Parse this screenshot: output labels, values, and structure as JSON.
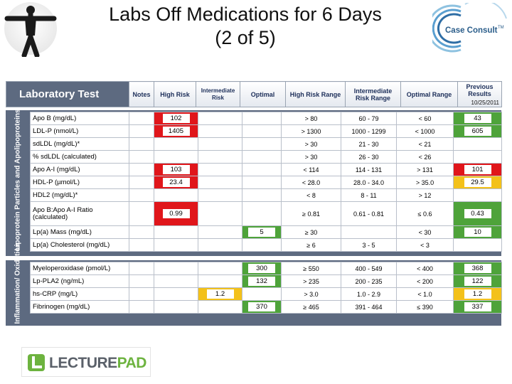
{
  "slide": {
    "title_line1": "Labs Off Medications for 6 Days",
    "title_line2": "(2 of 5)"
  },
  "logos": {
    "case_consult": "Case Consult",
    "case_consult_tm": "TM",
    "lecturepad_part1": "LECTURE",
    "lecturepad_part2": "PAD",
    "human_figure": "vitruvian-figure-icon"
  },
  "header": {
    "laboratory_test": "Laboratory Test",
    "notes": "Notes",
    "high_risk": "High Risk",
    "intermediate_risk": "Intermediate Risk",
    "optimal": "Optimal",
    "high_risk_range": "High Risk Range",
    "intermediate_risk_range": "Intermediate Risk Range",
    "optimal_range": "Optimal Range",
    "previous_results": "Previous Results",
    "previous_date": "10/25/2011"
  },
  "colors": {
    "high": "#e0161b",
    "intermediate": "#f3c11a",
    "optimal": "#4ea33a",
    "band": "#5d6a80"
  },
  "sections": [
    {
      "label": "Lipoprotein Particles and Apolipoproteins",
      "rows": [
        {
          "name": "Apo B (mg/dL)",
          "result": "102",
          "risk": "high",
          "high_range": "> 80",
          "int_range": "60 - 79",
          "opt_range": "< 60",
          "previous": "43",
          "prev_risk": "optimal"
        },
        {
          "name": "LDL-P (nmol/L)",
          "result": "1405",
          "risk": "high",
          "high_range": "> 1300",
          "int_range": "1000 - 1299",
          "opt_range": "< 1000",
          "previous": "605",
          "prev_risk": "optimal"
        },
        {
          "name": "sdLDL (mg/dL)*",
          "result": "",
          "risk": "",
          "high_range": "> 30",
          "int_range": "21 - 30",
          "opt_range": "< 21",
          "previous": "",
          "prev_risk": ""
        },
        {
          "name": "% sdLDL (calculated)",
          "result": "",
          "risk": "",
          "high_range": "> 30",
          "int_range": "26 - 30",
          "opt_range": "< 26",
          "previous": "",
          "prev_risk": ""
        },
        {
          "name": "Apo A-I (mg/dL)",
          "result": "103",
          "risk": "high",
          "high_range": "< 114",
          "int_range": "114 - 131",
          "opt_range": "> 131",
          "previous": "101",
          "prev_risk": "high"
        },
        {
          "name": "HDL-P (µmol/L)",
          "result": "23.4",
          "risk": "high",
          "high_range": "< 28.0",
          "int_range": "28.0 - 34.0",
          "opt_range": "> 35.0",
          "previous": "29.5",
          "prev_risk": "intermediate"
        },
        {
          "name": "HDL2 (mg/dL)*",
          "result": "",
          "risk": "",
          "high_range": "< 8",
          "int_range": "8 - 11",
          "opt_range": "> 12",
          "previous": "",
          "prev_risk": ""
        },
        {
          "name": "Apo B:Apo A-I Ratio (calculated)",
          "result": "0.99",
          "risk": "high",
          "high_range": "≥ 0.81",
          "int_range": "0.61 - 0.81",
          "opt_range": "≤ 0.6",
          "previous": "0.43",
          "prev_risk": "optimal"
        },
        {
          "name": "Lp(a) Mass (mg/dL)",
          "result": "5",
          "risk": "optimal",
          "high_range": "≥ 30",
          "int_range": "",
          "opt_range": "< 30",
          "previous": "10",
          "prev_risk": "optimal"
        },
        {
          "name": "Lp(a) Cholesterol (mg/dL)",
          "result": "",
          "risk": "",
          "high_range": "≥ 6",
          "int_range": "3 - 5",
          "opt_range": "< 3",
          "previous": "",
          "prev_risk": ""
        }
      ]
    },
    {
      "label": "Inflammation/ Oxidation",
      "rows": [
        {
          "name": "Myeloperoxidase (pmol/L)",
          "result": "300",
          "risk": "optimal",
          "high_range": "≥ 550",
          "int_range": "400 - 549",
          "opt_range": "< 400",
          "previous": "368",
          "prev_risk": "optimal"
        },
        {
          "name": "Lp-PLA2 (ng/mL)",
          "result": "132",
          "risk": "optimal",
          "high_range": "> 235",
          "int_range": "200 - 235",
          "opt_range": "< 200",
          "previous": "122",
          "prev_risk": "optimal"
        },
        {
          "name": "hs-CRP (mg/L)",
          "result": "1.2",
          "risk": "intermediate",
          "high_range": "> 3.0",
          "int_range": "1.0 - 2.9",
          "opt_range": "< 1.0",
          "previous": "1.2",
          "prev_risk": "intermediate"
        },
        {
          "name": "Fibrinogen (mg/dL)",
          "result": "370",
          "risk": "optimal",
          "high_range": "≥ 465",
          "int_range": "391 - 464",
          "opt_range": "≤ 390",
          "previous": "337",
          "prev_risk": "optimal"
        }
      ]
    }
  ]
}
